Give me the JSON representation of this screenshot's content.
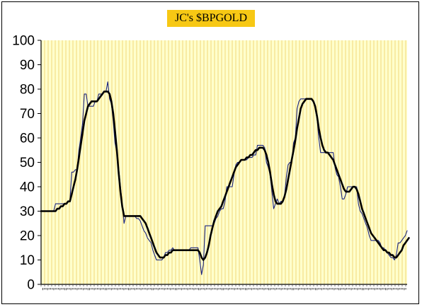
{
  "chart_data": {
    "type": "line",
    "title": "JC's $BPGOLD",
    "xlabel": "",
    "ylabel": "",
    "ylim": [
      0,
      100
    ],
    "yticks": [
      0,
      10,
      20,
      30,
      40,
      50,
      60,
      70,
      80,
      90,
      100
    ],
    "grid": true,
    "x_axis_note": "dense date tick labels (illegible)",
    "colors": {
      "plot_bg": "#ffffcc",
      "grid": "#f2d77a",
      "raw": "#1a237e",
      "smooth": "#000000",
      "title_bg": "#f7c814"
    },
    "series": [
      {
        "style": "thin",
        "values": [
          30,
          30,
          30,
          30,
          30,
          30,
          30,
          30,
          33,
          33,
          33,
          33,
          33,
          33,
          33,
          34,
          34,
          46,
          46,
          47,
          47,
          55,
          60,
          66,
          78,
          78,
          73,
          73,
          73,
          73,
          75,
          75,
          78,
          78,
          78,
          79,
          79,
          83,
          76,
          74,
          67,
          58,
          54,
          48,
          40,
          33,
          25,
          28,
          28,
          28,
          28,
          28,
          28,
          27,
          27,
          26,
          24,
          22,
          21,
          19,
          18,
          17,
          14,
          12,
          10,
          10,
          10,
          10,
          11,
          13,
          13,
          14,
          14,
          15,
          14,
          14,
          14,
          14,
          14,
          14,
          14,
          14,
          14,
          15,
          15,
          15,
          15,
          15,
          10,
          4,
          8,
          24,
          24,
          24,
          24,
          24,
          25,
          27,
          28,
          30,
          31,
          31,
          34,
          40,
          40,
          40,
          40,
          45,
          49,
          50,
          50,
          51,
          51,
          51,
          51,
          52,
          52,
          52,
          53,
          53,
          57,
          57,
          57,
          57,
          56,
          50,
          48,
          45,
          38,
          31,
          33,
          35,
          33,
          34,
          34,
          36,
          44,
          49,
          50,
          50,
          58,
          60,
          72,
          75,
          76,
          76,
          76,
          76,
          76,
          76,
          76,
          75,
          72,
          68,
          60,
          54,
          54,
          54,
          54,
          54,
          54,
          54,
          54,
          48,
          45,
          44,
          40,
          35,
          35,
          37,
          40,
          40,
          40,
          40,
          40,
          40,
          33,
          30,
          29,
          27,
          25,
          23,
          20,
          18,
          18,
          18,
          18,
          18,
          17,
          15,
          15,
          14,
          13,
          12,
          11,
          11,
          10,
          12,
          17,
          17,
          18,
          19,
          20,
          22
        ]
      },
      {
        "style": "bold",
        "values": [
          30,
          30,
          30,
          30,
          30,
          30,
          30,
          30,
          30,
          31,
          31,
          32,
          32,
          33,
          33,
          34,
          34,
          37,
          40,
          43,
          47,
          52,
          57,
          62,
          67,
          70,
          73,
          74,
          75,
          75,
          75,
          75,
          76,
          77,
          78,
          79,
          79,
          79,
          78,
          75,
          70,
          63,
          55,
          46,
          38,
          32,
          28,
          28,
          28,
          28,
          28,
          28,
          28,
          28,
          28,
          28,
          27,
          26,
          25,
          23,
          21,
          19,
          17,
          15,
          13,
          12,
          11,
          11,
          11,
          12,
          12,
          13,
          13,
          14,
          14,
          14,
          14,
          14,
          14,
          14,
          14,
          14,
          14,
          14,
          14,
          14,
          14,
          14,
          13,
          11,
          10,
          11,
          13,
          16,
          20,
          23,
          26,
          28,
          30,
          31,
          32,
          34,
          36,
          38,
          40,
          42,
          44,
          46,
          48,
          49,
          50,
          51,
          51,
          51,
          52,
          52,
          53,
          53,
          54,
          55,
          55,
          56,
          56,
          56,
          55,
          53,
          50,
          46,
          41,
          37,
          34,
          33,
          33,
          33,
          34,
          36,
          39,
          43,
          47,
          51,
          55,
          59,
          64,
          68,
          72,
          74,
          75,
          76,
          76,
          76,
          76,
          75,
          73,
          69,
          64,
          60,
          57,
          55,
          54,
          54,
          53,
          52,
          51,
          49,
          47,
          45,
          43,
          41,
          39,
          38,
          38,
          38,
          39,
          40,
          40,
          39,
          37,
          34,
          31,
          29,
          27,
          25,
          23,
          21,
          20,
          19,
          18,
          17,
          16,
          15,
          14,
          14,
          13,
          13,
          12,
          12,
          11,
          11,
          12,
          13,
          14,
          16,
          17,
          18,
          19
        ]
      }
    ]
  }
}
